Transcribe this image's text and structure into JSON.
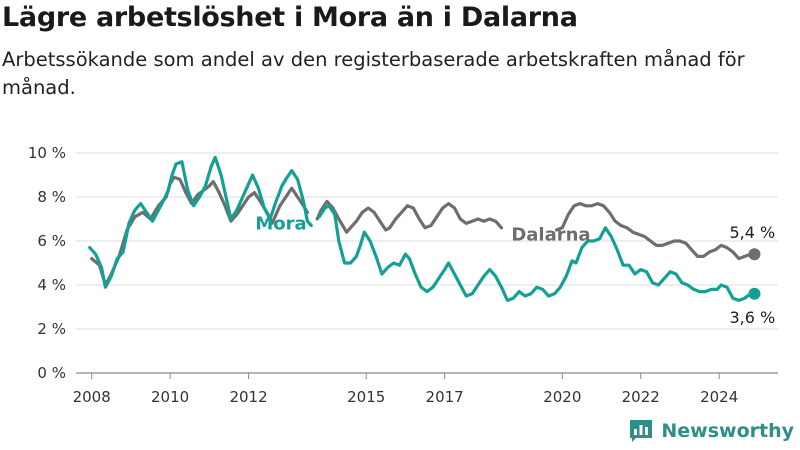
{
  "header": {
    "title": "Lägre arbetslöshet i Mora än i Dalarna",
    "subtitle": "Arbetssökande som andel av den registerbaserade arbetskraften månad för månad."
  },
  "brand": {
    "name": "Newsworthy",
    "logo_icon": "bar-chart-logo-icon",
    "color": "#2f8f88"
  },
  "chart_data": {
    "type": "line",
    "title": "",
    "xlabel": "",
    "ylabel": "",
    "ylim": [
      0,
      10
    ],
    "xlim": [
      2007.6,
      2025.5
    ],
    "yticks": [
      {
        "value": 0,
        "label": "0 %"
      },
      {
        "value": 2,
        "label": "2 %"
      },
      {
        "value": 4,
        "label": "4 %"
      },
      {
        "value": 6,
        "label": "6 %"
      },
      {
        "value": 8,
        "label": "8 %"
      },
      {
        "value": 10,
        "label": "10 %"
      }
    ],
    "xticks": [
      {
        "value": 2008,
        "label": "2008"
      },
      {
        "value": 2010,
        "label": "2010"
      },
      {
        "value": 2012,
        "label": "2012"
      },
      {
        "value": 2015,
        "label": "2015"
      },
      {
        "value": 2017,
        "label": "2017"
      },
      {
        "value": 2020,
        "label": "2020"
      },
      {
        "value": 2022,
        "label": "2022"
      },
      {
        "value": 2024,
        "label": "2024"
      }
    ],
    "grid": true,
    "legend": "inline",
    "end_labels": {
      "Dalarna": "5,4 %",
      "Mora": "3,6 %"
    },
    "series": [
      {
        "name": "Dalarna",
        "color": "#6e6e6e",
        "points": [
          [
            2008.0,
            5.2
          ],
          [
            2008.2,
            4.9
          ],
          [
            2008.35,
            4.0
          ],
          [
            2008.5,
            4.5
          ],
          [
            2008.7,
            5.3
          ],
          [
            2008.9,
            6.5
          ],
          [
            2009.1,
            7.1
          ],
          [
            2009.3,
            7.3
          ],
          [
            2009.5,
            7.0
          ],
          [
            2009.7,
            7.6
          ],
          [
            2009.9,
            8.0
          ],
          [
            2010.0,
            8.6
          ],
          [
            2010.1,
            8.9
          ],
          [
            2010.25,
            8.8
          ],
          [
            2010.4,
            8.2
          ],
          [
            2010.55,
            7.7
          ],
          [
            2010.7,
            8.1
          ],
          [
            2010.85,
            8.3
          ],
          [
            2011.0,
            8.5
          ],
          [
            2011.1,
            8.7
          ],
          [
            2011.25,
            8.2
          ],
          [
            2011.4,
            7.6
          ],
          [
            2011.55,
            6.9
          ],
          [
            2011.7,
            7.2
          ],
          [
            2011.85,
            7.6
          ],
          [
            2012.0,
            8.0
          ],
          [
            2012.15,
            8.2
          ],
          [
            2012.3,
            7.8
          ],
          [
            2012.5,
            7.2
          ],
          [
            2012.6,
            6.8
          ],
          [
            2012.8,
            7.6
          ],
          [
            2012.95,
            8.0
          ],
          [
            2013.1,
            8.4
          ],
          [
            2013.25,
            8.0
          ],
          [
            2013.4,
            7.6
          ],
          [
            2013.5,
            7.3
          ]
        ]
      },
      {
        "name": "Dalarna",
        "color": "#6e6e6e",
        "points": [
          [
            2013.75,
            7.0
          ],
          [
            2013.85,
            7.4
          ],
          [
            2014.0,
            7.8
          ],
          [
            2014.15,
            7.5
          ],
          [
            2014.3,
            7.0
          ],
          [
            2014.5,
            6.4
          ],
          [
            2014.6,
            6.6
          ],
          [
            2014.75,
            6.9
          ],
          [
            2014.9,
            7.3
          ],
          [
            2015.05,
            7.5
          ],
          [
            2015.2,
            7.3
          ],
          [
            2015.35,
            6.9
          ],
          [
            2015.5,
            6.5
          ],
          [
            2015.6,
            6.6
          ],
          [
            2015.75,
            7.0
          ],
          [
            2015.9,
            7.3
          ],
          [
            2016.05,
            7.6
          ],
          [
            2016.2,
            7.5
          ],
          [
            2016.35,
            7.0
          ],
          [
            2016.5,
            6.6
          ],
          [
            2016.65,
            6.7
          ],
          [
            2016.8,
            7.1
          ],
          [
            2016.95,
            7.5
          ],
          [
            2017.1,
            7.7
          ],
          [
            2017.25,
            7.5
          ],
          [
            2017.4,
            7.0
          ],
          [
            2017.55,
            6.8
          ],
          [
            2017.7,
            6.9
          ],
          [
            2017.85,
            7.0
          ],
          [
            2018.0,
            6.9
          ],
          [
            2018.15,
            7.0
          ],
          [
            2018.3,
            6.9
          ],
          [
            2018.45,
            6.6
          ]
        ]
      },
      {
        "name": "Dalarna",
        "color": "#6e6e6e",
        "points": [
          [
            2019.85,
            6.5
          ],
          [
            2020.0,
            6.6
          ],
          [
            2020.15,
            7.2
          ],
          [
            2020.3,
            7.6
          ],
          [
            2020.45,
            7.7
          ],
          [
            2020.6,
            7.6
          ],
          [
            2020.75,
            7.6
          ],
          [
            2020.9,
            7.7
          ],
          [
            2021.05,
            7.6
          ],
          [
            2021.2,
            7.3
          ],
          [
            2021.35,
            6.9
          ],
          [
            2021.5,
            6.7
          ],
          [
            2021.65,
            6.6
          ],
          [
            2021.8,
            6.4
          ],
          [
            2021.95,
            6.3
          ],
          [
            2022.1,
            6.2
          ],
          [
            2022.25,
            6.0
          ],
          [
            2022.4,
            5.8
          ],
          [
            2022.55,
            5.8
          ],
          [
            2022.7,
            5.9
          ],
          [
            2022.85,
            6.0
          ],
          [
            2023.0,
            6.0
          ],
          [
            2023.15,
            5.9
          ],
          [
            2023.3,
            5.6
          ],
          [
            2023.45,
            5.3
          ],
          [
            2023.6,
            5.3
          ],
          [
            2023.75,
            5.5
          ],
          [
            2023.9,
            5.6
          ],
          [
            2024.05,
            5.8
          ],
          [
            2024.2,
            5.7
          ],
          [
            2024.35,
            5.5
          ],
          [
            2024.5,
            5.2
          ],
          [
            2024.65,
            5.3
          ],
          [
            2024.8,
            5.4
          ],
          [
            2024.9,
            5.4
          ]
        ]
      },
      {
        "name": "Mora",
        "color": "#14a095",
        "points": [
          [
            2007.95,
            5.7
          ],
          [
            2008.1,
            5.4
          ],
          [
            2008.25,
            4.8
          ],
          [
            2008.35,
            3.9
          ],
          [
            2008.5,
            4.4
          ],
          [
            2008.65,
            5.2
          ],
          [
            2008.8,
            5.5
          ],
          [
            2008.95,
            6.8
          ],
          [
            2009.1,
            7.4
          ],
          [
            2009.25,
            7.7
          ],
          [
            2009.4,
            7.3
          ],
          [
            2009.55,
            6.9
          ],
          [
            2009.7,
            7.4
          ],
          [
            2009.85,
            7.9
          ],
          [
            2009.95,
            8.3
          ],
          [
            2010.05,
            9.0
          ],
          [
            2010.15,
            9.5
          ],
          [
            2010.3,
            9.6
          ],
          [
            2010.45,
            8.3
          ],
          [
            2010.6,
            7.6
          ],
          [
            2010.75,
            8.0
          ],
          [
            2010.9,
            8.5
          ],
          [
            2011.05,
            9.4
          ],
          [
            2011.15,
            9.8
          ],
          [
            2011.3,
            9.0
          ],
          [
            2011.45,
            7.8
          ],
          [
            2011.55,
            7.0
          ],
          [
            2011.7,
            7.4
          ],
          [
            2011.85,
            8.0
          ],
          [
            2012.0,
            8.6
          ],
          [
            2012.1,
            9.0
          ],
          [
            2012.25,
            8.4
          ],
          [
            2012.4,
            7.5
          ],
          [
            2012.55,
            7.0
          ],
          [
            2012.7,
            7.8
          ],
          [
            2012.85,
            8.5
          ],
          [
            2012.95,
            8.8
          ],
          [
            2013.1,
            9.2
          ],
          [
            2013.25,
            8.8
          ],
          [
            2013.4,
            7.8
          ],
          [
            2013.5,
            6.9
          ],
          [
            2013.6,
            6.7
          ]
        ]
      },
      {
        "name": "Mora",
        "color": "#14a095",
        "points": [
          [
            2013.8,
            7.1
          ],
          [
            2013.95,
            7.5
          ],
          [
            2014.05,
            7.6
          ],
          [
            2014.2,
            7.2
          ],
          [
            2014.3,
            6.0
          ],
          [
            2014.45,
            5.0
          ],
          [
            2014.6,
            5.0
          ],
          [
            2014.75,
            5.3
          ],
          [
            2014.85,
            5.8
          ],
          [
            2014.95,
            6.4
          ],
          [
            2015.1,
            6.0
          ],
          [
            2015.25,
            5.3
          ],
          [
            2015.4,
            4.5
          ],
          [
            2015.55,
            4.8
          ],
          [
            2015.7,
            5.0
          ],
          [
            2015.85,
            4.9
          ],
          [
            2016.0,
            5.4
          ],
          [
            2016.1,
            5.2
          ],
          [
            2016.25,
            4.5
          ],
          [
            2016.4,
            3.9
          ],
          [
            2016.55,
            3.7
          ],
          [
            2016.7,
            3.9
          ],
          [
            2016.85,
            4.3
          ],
          [
            2017.0,
            4.7
          ],
          [
            2017.1,
            5.0
          ],
          [
            2017.25,
            4.5
          ],
          [
            2017.4,
            4.0
          ],
          [
            2017.55,
            3.5
          ],
          [
            2017.7,
            3.6
          ],
          [
            2017.85,
            4.0
          ],
          [
            2018.0,
            4.4
          ],
          [
            2018.15,
            4.7
          ],
          [
            2018.3,
            4.4
          ],
          [
            2018.45,
            3.9
          ],
          [
            2018.6,
            3.3
          ],
          [
            2018.75,
            3.4
          ],
          [
            2018.9,
            3.7
          ],
          [
            2019.05,
            3.5
          ],
          [
            2019.2,
            3.6
          ],
          [
            2019.35,
            3.9
          ],
          [
            2019.5,
            3.8
          ],
          [
            2019.65,
            3.5
          ],
          [
            2019.8,
            3.6
          ],
          [
            2019.95,
            3.9
          ],
          [
            2020.1,
            4.4
          ],
          [
            2020.25,
            5.1
          ],
          [
            2020.35,
            5.0
          ],
          [
            2020.5,
            5.7
          ],
          [
            2020.65,
            6.0
          ],
          [
            2020.8,
            6.0
          ],
          [
            2020.95,
            6.1
          ],
          [
            2021.1,
            6.6
          ],
          [
            2021.25,
            6.2
          ],
          [
            2021.4,
            5.6
          ],
          [
            2021.55,
            4.9
          ],
          [
            2021.7,
            4.9
          ],
          [
            2021.85,
            4.5
          ],
          [
            2022.0,
            4.7
          ],
          [
            2022.15,
            4.6
          ],
          [
            2022.3,
            4.1
          ],
          [
            2022.45,
            4.0
          ],
          [
            2022.6,
            4.3
          ],
          [
            2022.75,
            4.6
          ],
          [
            2022.9,
            4.5
          ],
          [
            2023.05,
            4.1
          ],
          [
            2023.2,
            4.0
          ],
          [
            2023.35,
            3.8
          ],
          [
            2023.5,
            3.7
          ],
          [
            2023.65,
            3.7
          ],
          [
            2023.8,
            3.8
          ],
          [
            2023.95,
            3.8
          ],
          [
            2024.05,
            4.0
          ],
          [
            2024.2,
            3.9
          ],
          [
            2024.35,
            3.4
          ],
          [
            2024.5,
            3.3
          ],
          [
            2024.65,
            3.4
          ],
          [
            2024.8,
            3.6
          ],
          [
            2024.9,
            3.6
          ]
        ]
      }
    ]
  }
}
